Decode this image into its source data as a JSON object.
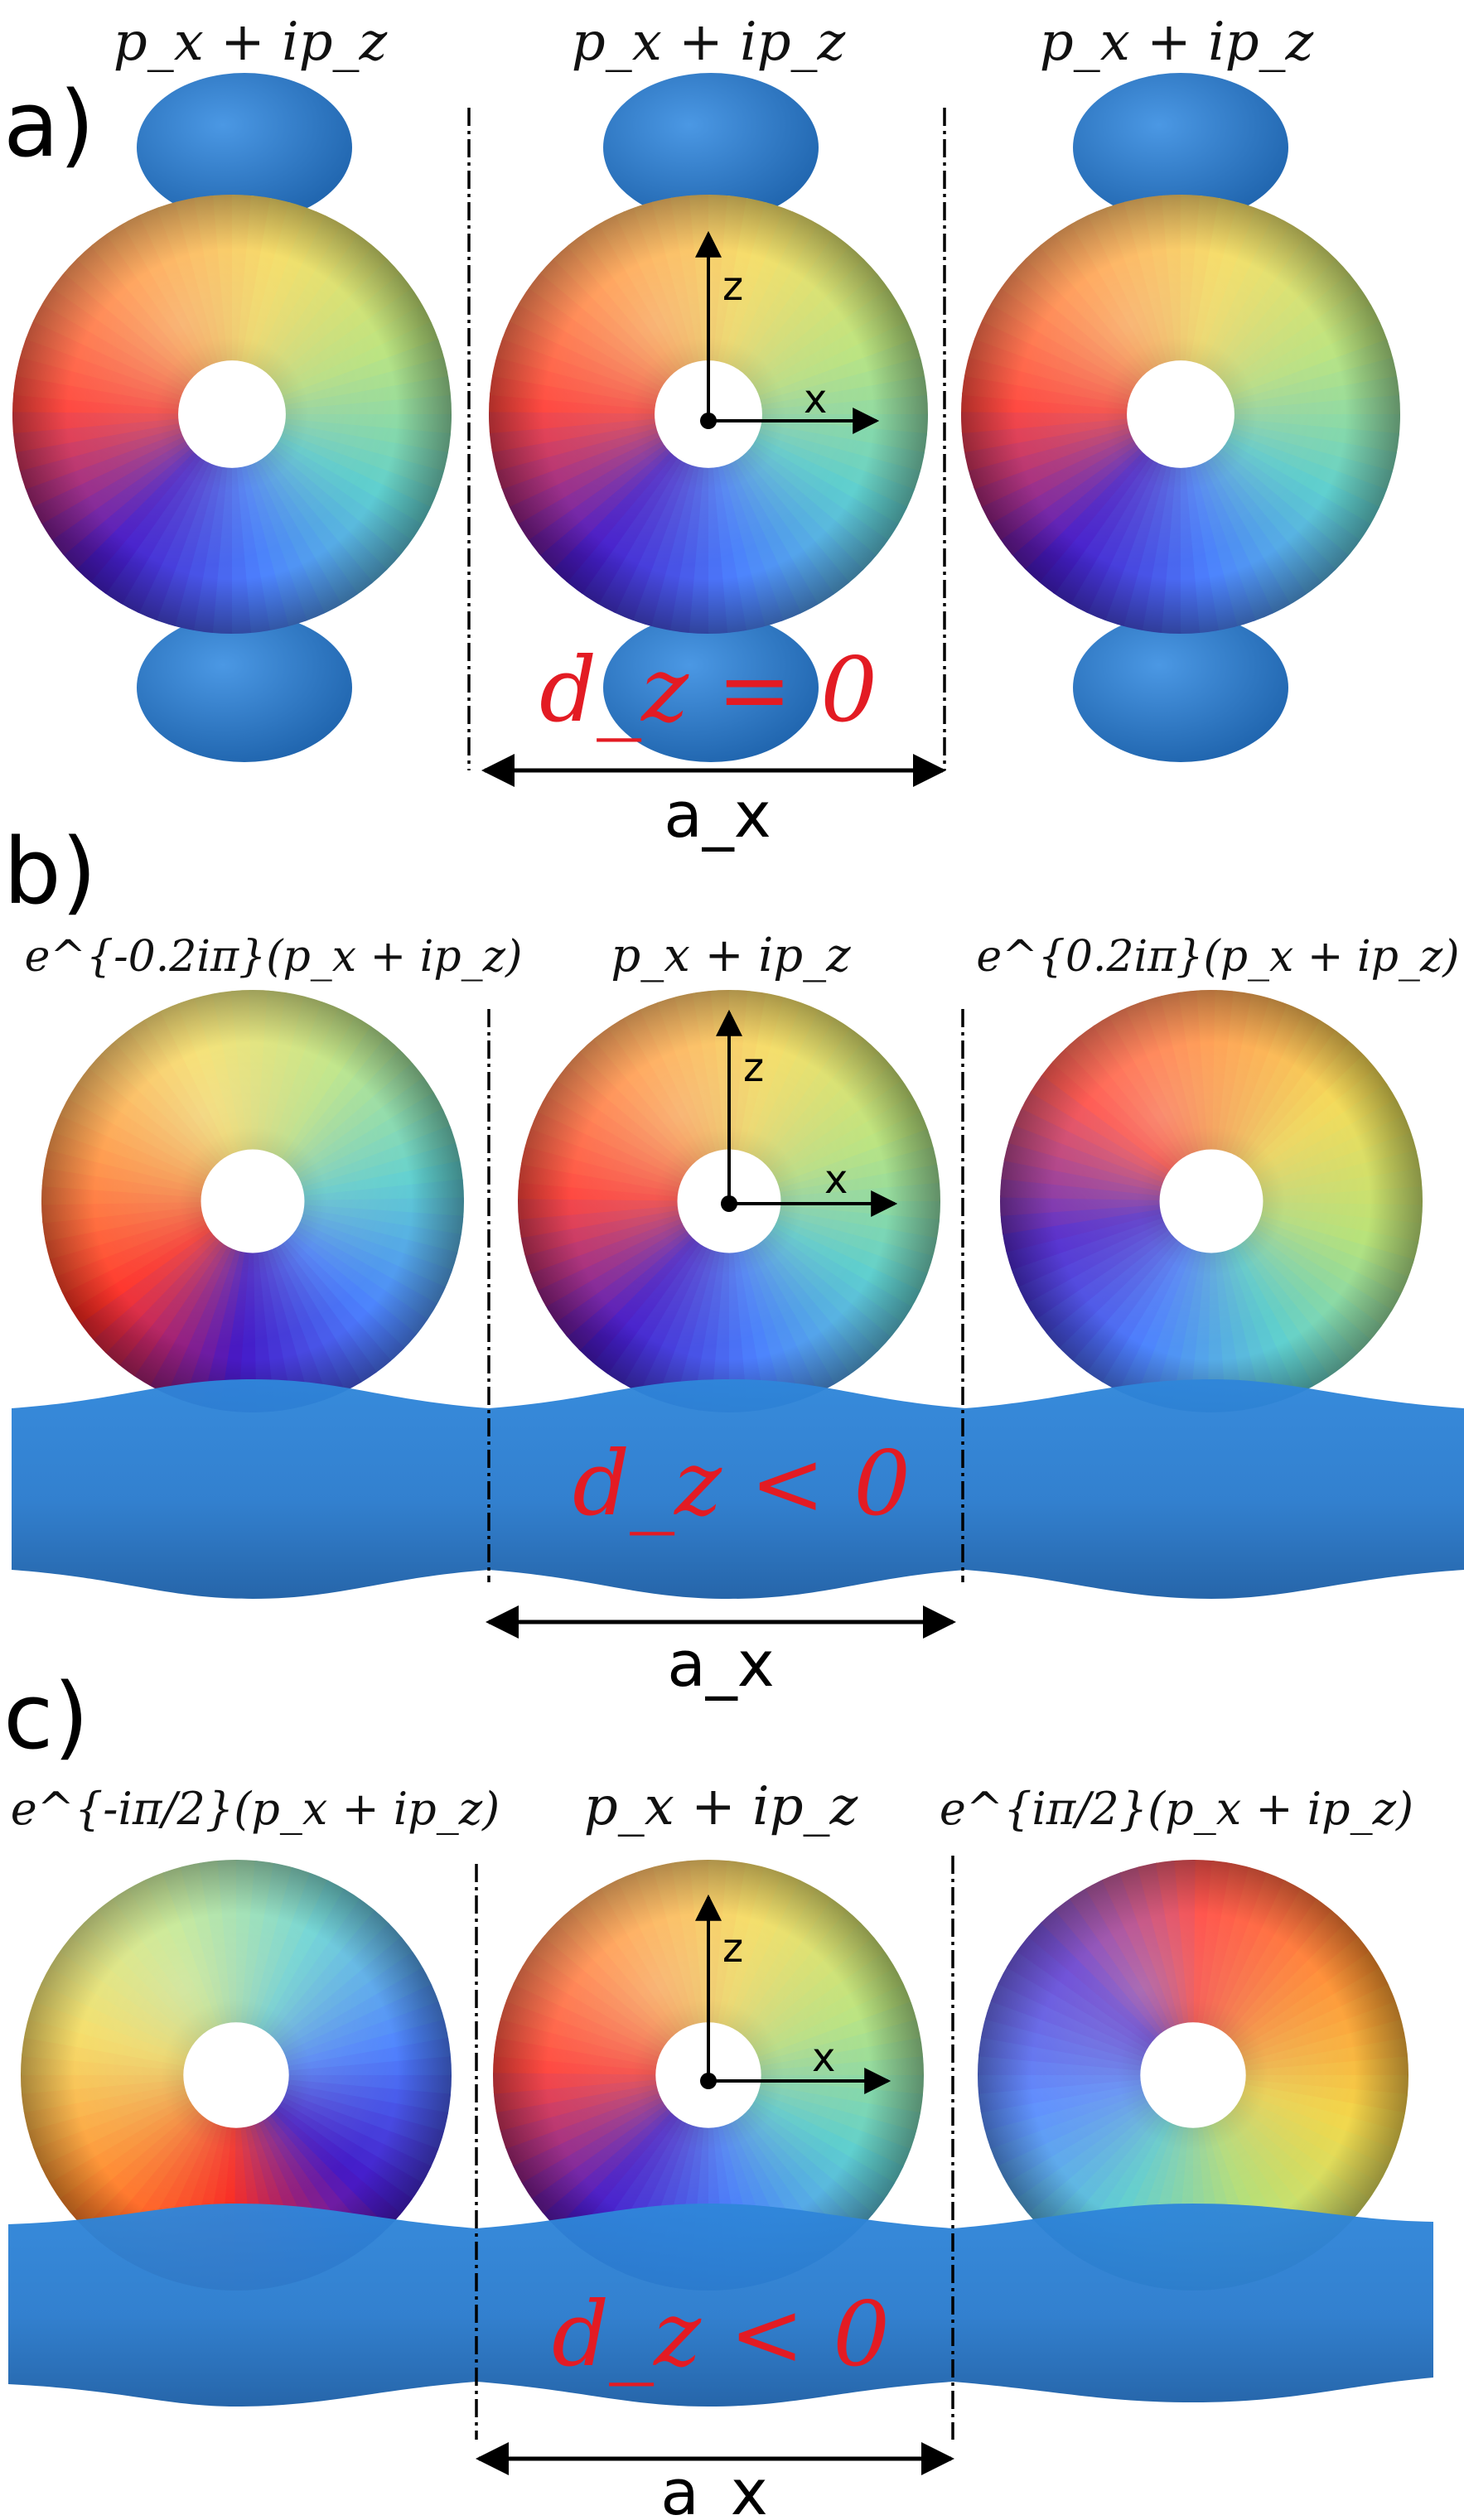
{
  "panels": [
    {
      "label": "a)",
      "labels": [
        "p_x + ip_z",
        "p_x + ip_z",
        "p_x + ip_z"
      ],
      "condition": "d_z = 0",
      "spacing": "a_x",
      "axes": {
        "z": "z",
        "x": "x"
      }
    },
    {
      "label": "b)",
      "labels": [
        "e^{-0.2iπ}(p_x + ip_z)",
        "p_x + ip_z",
        "e^{0.2iπ}(p_x + ip_z)"
      ],
      "condition": "d_z < 0",
      "spacing": "a_x",
      "axes": {
        "z": "z",
        "x": "x"
      }
    },
    {
      "label": "c)",
      "labels": [
        "e^{-iπ/2}(p_x + ip_z)",
        "p_x + ip_z",
        "e^{iπ/2}(p_x + ip_z)"
      ],
      "condition": "d_z < 0",
      "spacing": "a_x",
      "axes": {
        "z": "z",
        "x": "x"
      }
    }
  ],
  "colors": {
    "lobe": "#2d7fd0",
    "lobe_dark": "#1f64ad",
    "condition": "#e31b23",
    "phase_ring": [
      "#ff2a20",
      "#ff8a2a",
      "#f3d84c",
      "#b9e37a",
      "#5fd0d0",
      "#4c82ff",
      "#4418c8",
      "#ff2a20"
    ]
  },
  "orbital_phase_offsets_pi": [
    [
      0,
      0,
      0
    ],
    [
      -0.2,
      0,
      0.2
    ],
    [
      -0.5,
      0,
      0.5
    ]
  ]
}
